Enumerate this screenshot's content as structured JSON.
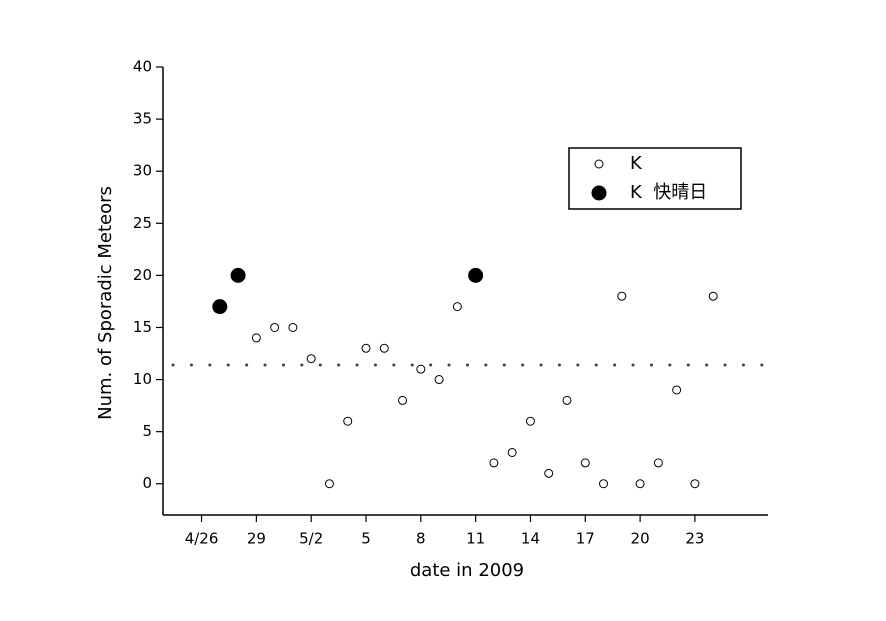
{
  "chart_data": {
    "type": "scatter",
    "xlabel": "date in 2009",
    "ylabel": "Num. of Sporadic Meteors",
    "xlim": [
      24,
      57
    ],
    "ylim": [
      -3,
      40
    ],
    "xticks": [
      {
        "value": 26,
        "label": "4/26"
      },
      {
        "value": 29,
        "label": "29"
      },
      {
        "value": 32,
        "label": "5/2"
      },
      {
        "value": 35,
        "label": "5"
      },
      {
        "value": 38,
        "label": "8"
      },
      {
        "value": 41,
        "label": "11"
      },
      {
        "value": 44,
        "label": "14"
      },
      {
        "value": 47,
        "label": "17"
      },
      {
        "value": 50,
        "label": "20"
      },
      {
        "value": 53,
        "label": "23"
      }
    ],
    "yticks": [
      0,
      5,
      10,
      15,
      20,
      25,
      30,
      35,
      40
    ],
    "reference_line": 11.4,
    "legend": "upper right",
    "series": [
      {
        "name": "K",
        "color": "#000000",
        "marker": "open",
        "x": [
          29,
          30,
          31,
          32,
          33,
          34,
          35,
          36,
          37,
          38,
          39,
          40,
          42,
          43,
          44,
          45,
          46,
          47,
          48,
          49,
          50,
          51,
          52,
          53,
          54
        ],
        "values": [
          14,
          15,
          15,
          12,
          0,
          6,
          13,
          13,
          8,
          11,
          10,
          17,
          2,
          3,
          6,
          1,
          8,
          2,
          0,
          18,
          0,
          2,
          9,
          0,
          18
        ]
      },
      {
        "name": "K  快晴日",
        "color": "#000000",
        "marker": "filled",
        "x": [
          27,
          28,
          41
        ],
        "values": [
          17,
          20,
          20
        ]
      }
    ]
  }
}
